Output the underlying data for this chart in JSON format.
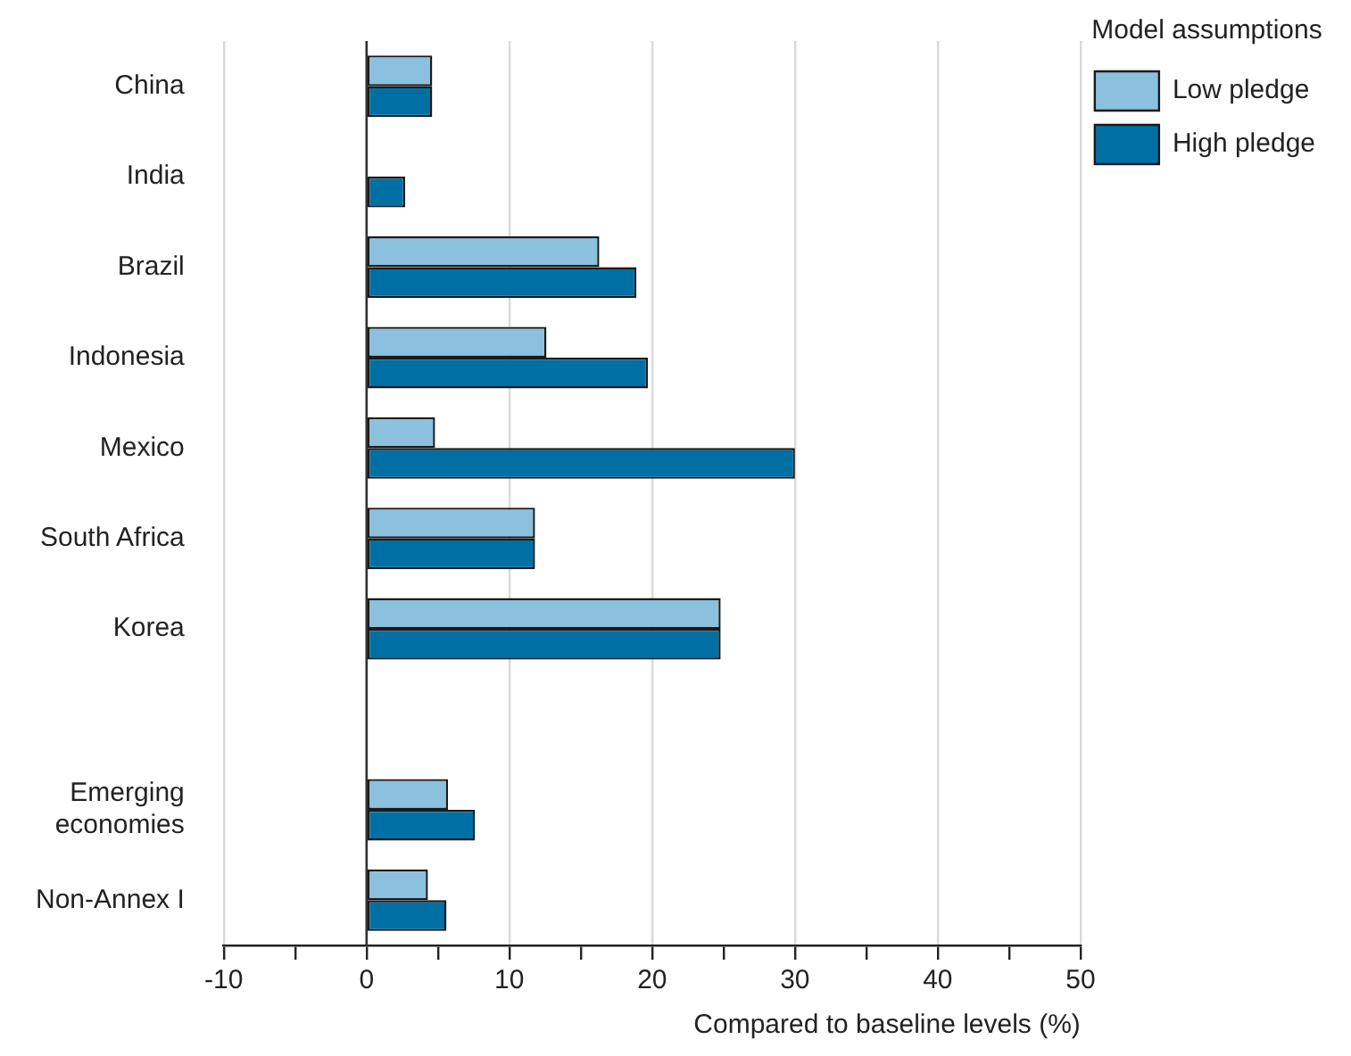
{
  "chart_data": {
    "type": "bar",
    "orientation": "horizontal",
    "xlabel": "Compared to baseline levels (%)",
    "legend_title": "Model assumptions",
    "legend": "top right",
    "categories": [
      "China",
      "India",
      "Brazil",
      "Indonesia",
      "Mexico",
      "South Africa",
      "Korea",
      null,
      "Emerging economies",
      "Non-Annex I"
    ],
    "series": [
      {
        "name": "Low pledge",
        "color": "#8bc0de",
        "values": [
          4.6,
          0,
          16.3,
          12.6,
          4.8,
          11.8,
          24.8,
          null,
          5.7,
          4.3
        ]
      },
      {
        "name": "High pledge",
        "color": "#0070a4",
        "values": [
          4.6,
          2.7,
          18.9,
          19.7,
          30.0,
          11.8,
          24.8,
          null,
          7.6,
          5.6
        ]
      }
    ],
    "xlim": [
      -10,
      50
    ],
    "xticks": [
      -10,
      {
        "value": -5,
        "label": null
      },
      0,
      {
        "value": 5,
        "label": null
      },
      10,
      {
        "value": 15,
        "label": null
      },
      20,
      {
        "value": 25,
        "label": null
      },
      30,
      {
        "value": 35,
        "label": null
      },
      40,
      {
        "value": 45,
        "label": null
      },
      50
    ],
    "grid": "x",
    "ref_lines": [
      {
        "axis": "x",
        "value": 0,
        "color": "#333333"
      }
    ]
  }
}
